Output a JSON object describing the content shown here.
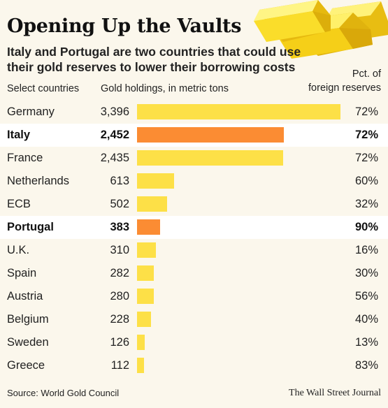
{
  "header": {
    "title": "Opening Up the Vaults",
    "subtitle": "Italy and Portugal are two countries that could use their gold reserves to lower their borrowing costs"
  },
  "columns": {
    "country": "Select countries",
    "tons": "Gold holdings, in metric tons",
    "pct": "Pct. of foreign reserves"
  },
  "colors": {
    "bar_default": "#fde047",
    "bar_highlight": "#fb8c33",
    "row_highlight": "#ffffff",
    "gold_light": "#fff06a",
    "gold_mid": "#f5cf18",
    "gold_dark": "#e0b30e"
  },
  "chart_data": {
    "type": "bar",
    "orientation": "horizontal",
    "categories": [
      "Germany",
      "Italy",
      "France",
      "Netherlands",
      "ECB",
      "Portugal",
      "U.K.",
      "Spain",
      "Austria",
      "Belgium",
      "Sweden",
      "Greece"
    ],
    "series": [
      {
        "name": "Gold holdings, in metric tons",
        "values": [
          3396,
          2452,
          2435,
          613,
          502,
          383,
          310,
          282,
          280,
          228,
          126,
          112
        ]
      }
    ],
    "value_labels": [
      "3,396",
      "2,452",
      "2,435",
      "613",
      "502",
      "383",
      "310",
      "282",
      "280",
      "228",
      "126",
      "112"
    ],
    "pct_labels": [
      "72%",
      "72%",
      "72%",
      "60%",
      "32%",
      "90%",
      "16%",
      "30%",
      "56%",
      "40%",
      "13%",
      "83%"
    ],
    "highlighted": [
      "Italy",
      "Portugal"
    ],
    "xlim": [
      0,
      3396
    ]
  },
  "footer": {
    "source": "Source: World Gold Council",
    "credit": "The Wall Street Journal"
  }
}
